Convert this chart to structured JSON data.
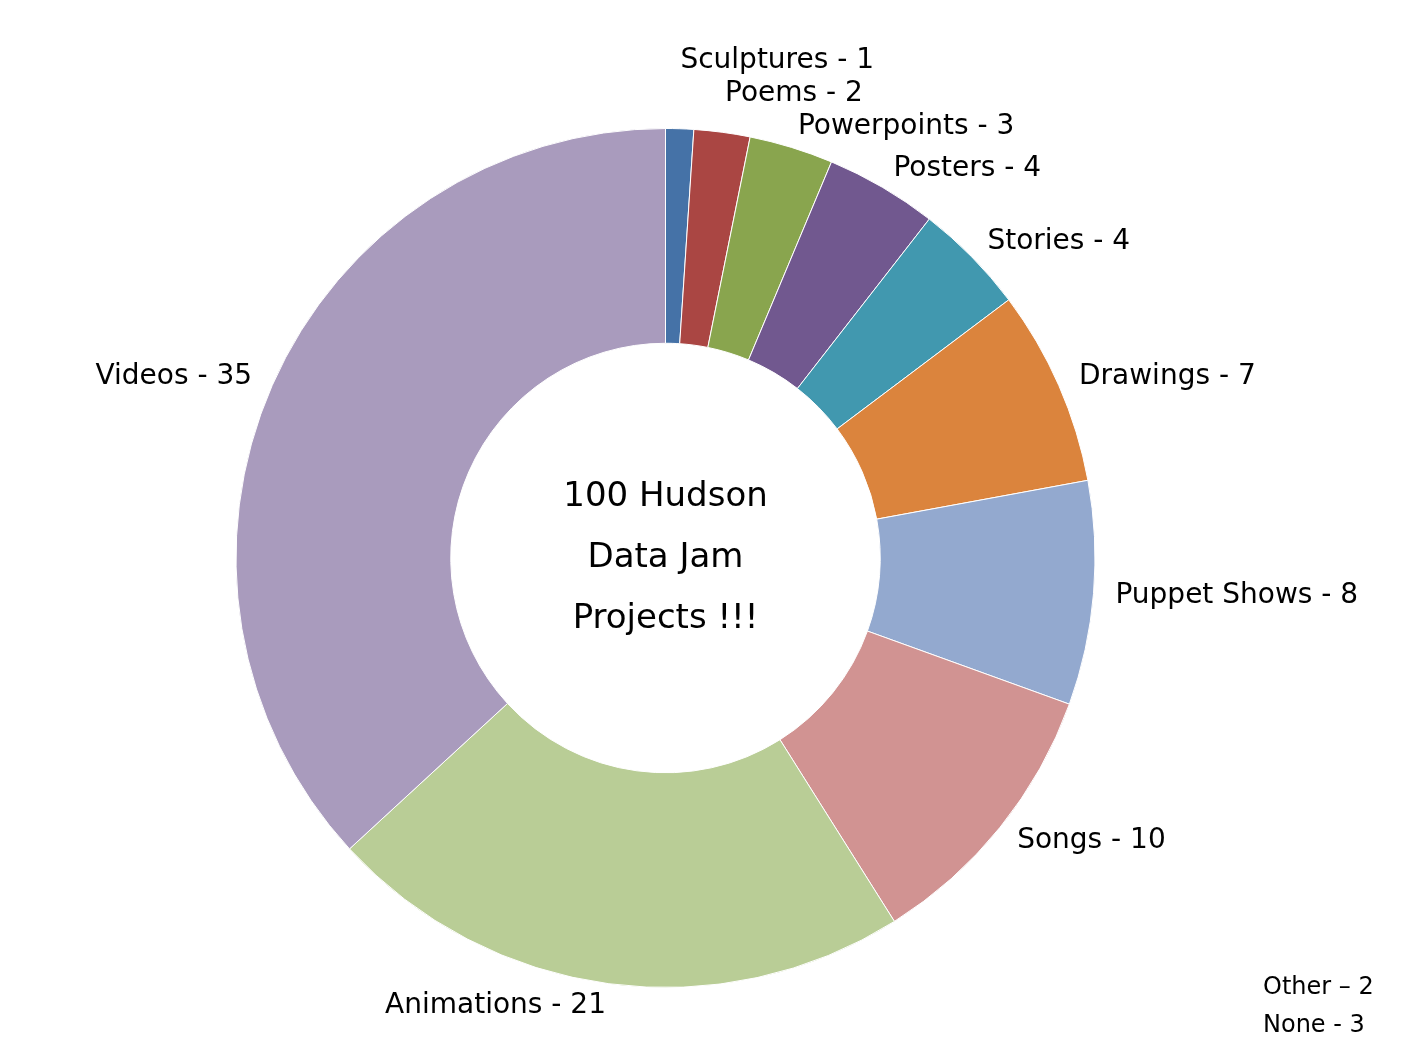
{
  "chart_data": {
    "type": "donut",
    "title": "100 Hudson Data Jam Projects !!!",
    "categories": [
      "Sculptures -",
      "Poems -",
      "Powerpoints -",
      "Posters -",
      "Stories -",
      "Drawings -",
      "Puppet Shows -",
      "Songs -",
      "Animations -",
      "Videos -"
    ],
    "values": [
      1,
      2,
      3,
      4,
      4,
      7,
      8,
      10,
      21,
      35
    ],
    "colors": [
      "#4572a7",
      "#aa4643",
      "#89a54e",
      "#71588f",
      "#4198af",
      "#db843d",
      "#93a9cf",
      "#d19392",
      "#b9cd96",
      "#a99bbd"
    ],
    "data_labels": true,
    "legend": false,
    "annotations": [
      "Other – 2",
      "None - 3"
    ]
  }
}
